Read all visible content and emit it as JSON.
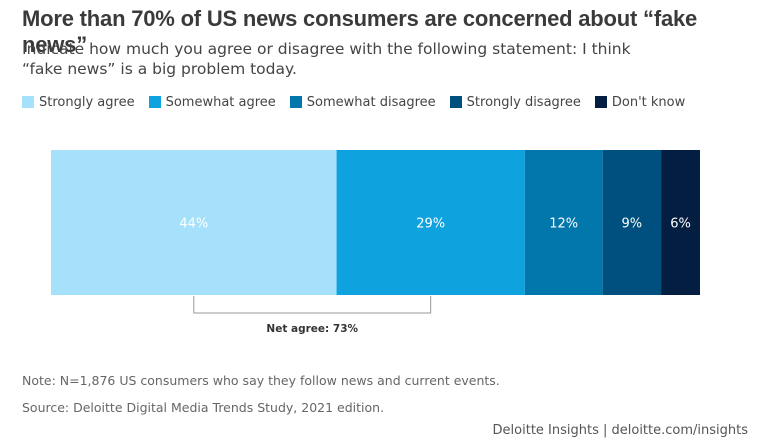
{
  "title": "More than 70% of US news consumers are concerned about “fake news”",
  "subtitle": "Indicate how much you agree or disagree with the following statement: I think “fake news” is a big problem today.",
  "chart_data": {
    "type": "bar",
    "orientation": "horizontal-stacked",
    "unit": "%",
    "series": [
      {
        "name": "Strongly agree",
        "value": 44,
        "label": "44%",
        "color": "#a6e1fb"
      },
      {
        "name": "Somewhat agree",
        "value": 29,
        "label": "29%",
        "color": "#0ea2de"
      },
      {
        "name": "Somewhat disagree",
        "value": 12,
        "label": "12%",
        "color": "#0177ab"
      },
      {
        "name": "Strongly disagree",
        "value": 9,
        "label": "9%",
        "color": "#00507f"
      },
      {
        "name": "Don't know",
        "value": 6,
        "label": "6%",
        "color": "#041e42"
      }
    ],
    "annotation": {
      "text": "Net agree: 73%",
      "value": 73,
      "spans": [
        "Strongly agree",
        "Somewhat agree"
      ]
    },
    "legend_position": "top-left",
    "grid": false
  },
  "note": "Note: N=1,876 US consumers who say they follow news and current events.",
  "source": "Source: Deloitte Digital Media Trends Study, 2021 edition.",
  "footer": "Deloitte Insights | deloitte.com/insights"
}
